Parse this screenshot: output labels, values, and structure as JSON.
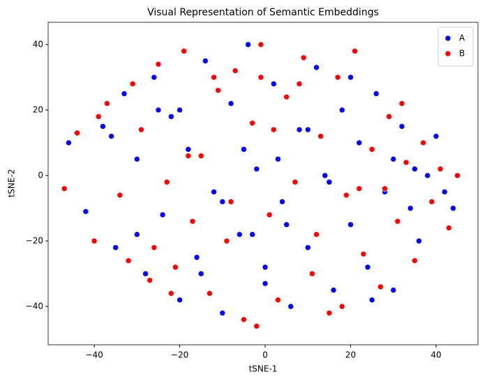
{
  "chart_data": {
    "type": "scatter",
    "title": "Visual Representation of Semantic Embeddings",
    "x_label": "tSNE-1",
    "y_label": "tSNE-2",
    "xlim": [
      -50.8,
      49.8
    ],
    "ylim": [
      -51.7,
      46.8
    ],
    "xticks": [
      {
        "value": -40,
        "label": "−40"
      },
      {
        "value": -20,
        "label": "−20"
      },
      0,
      20,
      40
    ],
    "yticks": [
      {
        "value": -40,
        "label": "−40"
      },
      {
        "value": -20,
        "label": "−20"
      },
      0,
      20,
      40
    ],
    "legend": "upper right",
    "series": [
      {
        "name": "A",
        "color": "#0000ff",
        "x": [
          -46,
          -42,
          -38,
          -35,
          -33,
          -30,
          -28,
          -26,
          -24,
          -22,
          -20,
          -18,
          -16,
          -14,
          -12,
          -10,
          -8,
          -6,
          -4,
          -2,
          0,
          2,
          4,
          6,
          8,
          10,
          12,
          14,
          16,
          18,
          20,
          22,
          24,
          26,
          28,
          30,
          32,
          34,
          36,
          38,
          40,
          42,
          44,
          -36,
          -25,
          -15,
          -5,
          5,
          15,
          25,
          35,
          -30,
          -10,
          10,
          30,
          -20,
          0,
          20,
          -3,
          3
        ],
        "values": [
          10,
          -11,
          15,
          -22,
          25,
          5,
          -30,
          30,
          -12,
          18,
          -38,
          8,
          -25,
          35,
          -5,
          -42,
          22,
          -18,
          40,
          2,
          -33,
          28,
          -8,
          -40,
          14,
          -22,
          33,
          0,
          -35,
          20,
          -15,
          10,
          -28,
          25,
          -5,
          5,
          15,
          -10,
          -20,
          0,
          12,
          -5,
          -10,
          12,
          20,
          -30,
          8,
          -15,
          -2,
          -38,
          2,
          -18,
          -8,
          14,
          -35,
          20,
          -28,
          30,
          -18,
          5
        ]
      },
      {
        "name": "B",
        "color": "#ff0000",
        "x": [
          -47,
          -44,
          -40,
          -37,
          -34,
          -31,
          -29,
          -27,
          -25,
          -23,
          -21,
          -19,
          -17,
          -15,
          -13,
          -11,
          -9,
          -7,
          -5,
          -3,
          -1,
          1,
          3,
          5,
          7,
          9,
          11,
          13,
          15,
          17,
          19,
          21,
          23,
          25,
          27,
          29,
          31,
          33,
          35,
          37,
          39,
          41,
          43,
          45,
          -39,
          -32,
          -26,
          -18,
          -8,
          2,
          12,
          22,
          32,
          -22,
          -12,
          -2,
          8,
          18,
          28,
          -1
        ],
        "values": [
          -4,
          13,
          -20,
          22,
          -6,
          28,
          14,
          -32,
          34,
          -2,
          -28,
          38,
          -14,
          6,
          -36,
          26,
          -20,
          32,
          -44,
          16,
          40,
          -12,
          -38,
          24,
          -2,
          36,
          -30,
          12,
          -42,
          30,
          -6,
          38,
          -24,
          8,
          -34,
          18,
          -14,
          4,
          -26,
          10,
          -8,
          2,
          -16,
          0,
          18,
          -26,
          -22,
          6,
          -8,
          14,
          -18,
          -4,
          22,
          -36,
          30,
          -46,
          28,
          -40,
          -4,
          30
        ]
      }
    ]
  }
}
